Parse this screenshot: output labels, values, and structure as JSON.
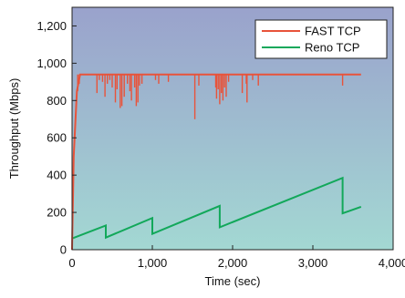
{
  "chart_data": {
    "type": "line",
    "title": "",
    "xlabel": "Time (sec)",
    "ylabel": "Throughput (Mbps)",
    "xlim": [
      0,
      4000
    ],
    "ylim": [
      0,
      1300
    ],
    "x_ticks": [
      0,
      1000,
      2000,
      3000,
      4000
    ],
    "x_tick_labels": [
      "0",
      "1,000",
      "2,000",
      "3,000",
      "4,000"
    ],
    "y_ticks": [
      0,
      200,
      400,
      600,
      800,
      1000,
      1200
    ],
    "y_tick_labels": [
      "0",
      "200",
      "400",
      "600",
      "800",
      "1,000",
      "1,200"
    ],
    "grid": false,
    "legend_position": "top-right",
    "background_gradient": [
      "#9aa2cc",
      "#a3d8d3"
    ],
    "series": [
      {
        "name": "FAST TCP",
        "color": "#e8533a",
        "baseline": {
          "x": [
            0,
            20,
            60,
            100,
            3600
          ],
          "y": [
            0,
            500,
            850,
            940,
            940
          ]
        },
        "dips": [
          [
            70,
            850
          ],
          [
            90,
            890
          ],
          [
            310,
            840
          ],
          [
            340,
            910
          ],
          [
            380,
            900
          ],
          [
            410,
            820
          ],
          [
            440,
            890
          ],
          [
            470,
            910
          ],
          [
            500,
            870
          ],
          [
            540,
            790
          ],
          [
            560,
            860
          ],
          [
            600,
            760
          ],
          [
            620,
            770
          ],
          [
            650,
            820
          ],
          [
            690,
            890
          ],
          [
            720,
            850
          ],
          [
            740,
            800
          ],
          [
            780,
            870
          ],
          [
            800,
            770
          ],
          [
            820,
            790
          ],
          [
            840,
            880
          ],
          [
            870,
            890
          ],
          [
            1040,
            910
          ],
          [
            1080,
            890
          ],
          [
            1200,
            900
          ],
          [
            1530,
            700
          ],
          [
            1580,
            880
          ],
          [
            1790,
            870
          ],
          [
            1800,
            810
          ],
          [
            1820,
            860
          ],
          [
            1840,
            780
          ],
          [
            1860,
            840
          ],
          [
            1880,
            800
          ],
          [
            1900,
            870
          ],
          [
            1920,
            820
          ],
          [
            1950,
            900
          ],
          [
            2120,
            840
          ],
          [
            2170,
            890
          ],
          [
            2180,
            790
          ],
          [
            2250,
            910
          ],
          [
            2320,
            880
          ],
          [
            3370,
            880
          ]
        ]
      },
      {
        "name": "Reno TCP",
        "color": "#12a85a",
        "x": [
          0,
          420,
          420,
          1000,
          1000,
          1840,
          1840,
          3370,
          3370,
          3600
        ],
        "y": [
          60,
          130,
          65,
          170,
          85,
          235,
          120,
          385,
          195,
          230
        ]
      }
    ]
  }
}
